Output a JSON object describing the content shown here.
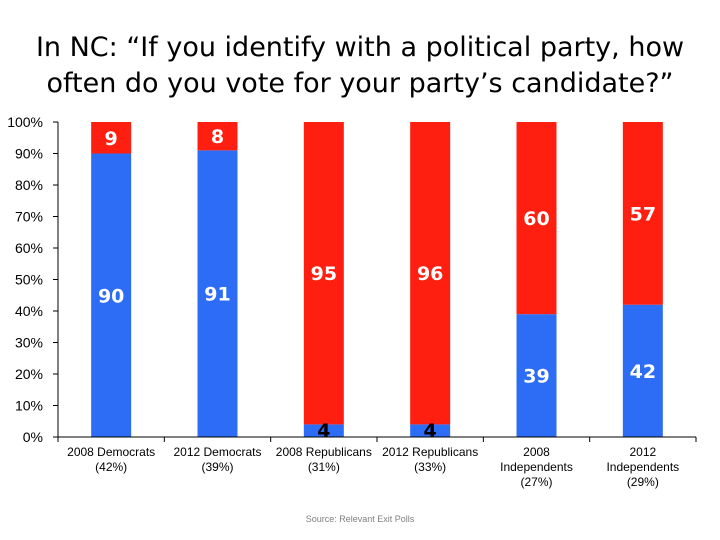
{
  "title_line1": "In NC: “If you identify with a political party, how",
  "title_line2": "often do you vote for your party’s candidate?”",
  "source": "Source: Relevant Exit Polls",
  "colors": {
    "blue": "#2d6df6",
    "red": "#ff1f10",
    "axis": "#000000",
    "label_white": "#ffffff",
    "label_dark": "#000000"
  },
  "chart_data": {
    "type": "bar",
    "stacked": true,
    "title": "In NC: “If you identify with a political party, how often do you vote for your party’s candidate?”",
    "ylim": [
      0,
      100
    ],
    "yticks": [
      "0%",
      "10%",
      "20%",
      "30%",
      "40%",
      "50%",
      "60%",
      "70%",
      "80%",
      "90%",
      "100%"
    ],
    "grid": false,
    "categories": [
      [
        "2008 Democrats",
        "(42%)"
      ],
      [
        "2012 Democrats",
        "(39%)"
      ],
      [
        "2008 Republicans",
        "(31%)"
      ],
      [
        "2012 Republicans",
        "(33%)"
      ],
      [
        "2008",
        "Independents",
        "(27%)"
      ],
      [
        "2012",
        "Independents",
        "(29%)"
      ]
    ],
    "series": [
      {
        "color": "#2d6df6",
        "values": [
          90,
          91,
          4,
          4,
          39,
          42
        ]
      },
      {
        "color": "#ff1f10",
        "values": [
          9,
          8,
          95,
          96,
          60,
          57
        ]
      }
    ],
    "data_labels": [
      [
        "90",
        "91",
        "4",
        "4",
        "39",
        "42"
      ],
      [
        "9",
        "8",
        "95",
        "96",
        "60",
        "57"
      ]
    ]
  }
}
